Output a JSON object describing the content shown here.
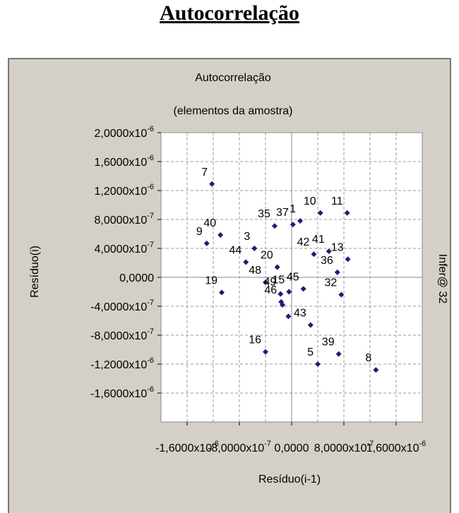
{
  "header": {
    "title": "Autocorrelação"
  },
  "chart_data": {
    "type": "scatter",
    "title": "Autocorrelação",
    "subtitle": "(elementos da amostra)",
    "x_label": "Resíduo(i-1)",
    "y_label": "Resíduo(i)",
    "watermark": "Infer@ 32",
    "color": "#1c1c7c",
    "grid": true,
    "xlim": [
      -2e-06,
      2e-06
    ],
    "ylim": [
      -2e-06,
      2e-06
    ],
    "xticks": [
      {
        "value": -1.6e-06,
        "label": "-1,6000x10",
        "exp": "-6"
      },
      {
        "value": -8e-07,
        "label": "-8,0000x10",
        "exp": "-7"
      },
      {
        "value": 0,
        "label": "0,0000"
      },
      {
        "value": 8e-07,
        "label": "8,0000x10",
        "exp": "-7"
      },
      {
        "value": 1.6e-06,
        "label": "1,6000x10",
        "exp": "-6"
      }
    ],
    "xminorticks": [
      -1.2e-06,
      -4e-07,
      4e-07,
      1.2e-06
    ],
    "yticks": [
      {
        "value": 2e-06,
        "label": "2,0000x10",
        "exp": "-6"
      },
      {
        "value": 1.6e-06,
        "label": "1,6000x10",
        "exp": "-6"
      },
      {
        "value": 1.2e-06,
        "label": "1,2000x10",
        "exp": "-6"
      },
      {
        "value": 8e-07,
        "label": "8,0000x10",
        "exp": "-7"
      },
      {
        "value": 4e-07,
        "label": "4,0000x10",
        "exp": "-7"
      },
      {
        "value": 0,
        "label": "0,0000"
      },
      {
        "value": -4e-07,
        "label": "-4,0000x10",
        "exp": "-7"
      },
      {
        "value": -8e-07,
        "label": "-8,0000x10",
        "exp": "-7"
      },
      {
        "value": -1.2e-06,
        "label": "-1,2000x10",
        "exp": "-6"
      },
      {
        "value": -1.6e-06,
        "label": "-1,6000x10",
        "exp": "-6"
      }
    ],
    "x": [
      -1.22e-06,
      -1.09e-06,
      -1.3e-06,
      -1.07e-06,
      -5.7e-07,
      -7e-07,
      -2.6e-07,
      2e-08,
      1.3e-07,
      4.4e-07,
      8.5e-07,
      3.4e-07,
      5.7e-07,
      8.6e-07,
      7e-07,
      7.6e-07,
      -2.2e-07,
      -4e-07,
      -1.7e-07,
      1.8e-07,
      -1.6e-07,
      -4e-08,
      2.9e-07,
      -4e-07,
      4e-07,
      7.2e-07,
      1.29e-06,
      -5e-08,
      -1.4e-07
    ],
    "y": [
      1.29e-06,
      5.85e-07,
      4.7e-07,
      -2.1e-07,
      4e-07,
      2.1e-07,
      7.1e-07,
      7.3e-07,
      7.8e-07,
      8.9e-07,
      8.9e-07,
      3.2e-07,
      3.6e-07,
      2.5e-07,
      7e-08,
      -2.4e-07,
      1.4e-07,
      -7e-08,
      -2.3e-07,
      -1.6e-07,
      -3.4e-07,
      -2e-07,
      -6.6e-07,
      -1.03e-06,
      -1.2e-06,
      -1.06e-06,
      -1.28e-06,
      -5.4e-07,
      -3.8e-07
    ],
    "point_labels": [
      "7",
      "40",
      "9",
      "19",
      "3",
      "44",
      "35",
      "37",
      "1",
      "10",
      "11",
      "42",
      "41",
      "13",
      "36",
      "32",
      "20",
      "48",
      "49",
      "45",
      "46",
      "15",
      "43",
      "16",
      "5",
      "39",
      "8",
      null,
      null
    ]
  }
}
